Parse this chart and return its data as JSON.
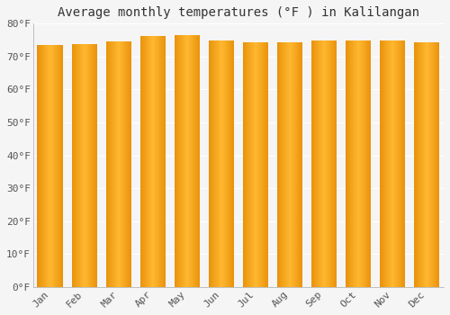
{
  "title": "Average monthly temperatures (°F ) in Kalilangan",
  "months": [
    "Jan",
    "Feb",
    "Mar",
    "Apr",
    "May",
    "Jun",
    "Jul",
    "Aug",
    "Sep",
    "Oct",
    "Nov",
    "Dec"
  ],
  "values": [
    73.4,
    73.9,
    74.5,
    76.3,
    76.6,
    75.0,
    74.3,
    74.3,
    74.8,
    75.0,
    75.0,
    74.3
  ],
  "ylim": [
    0,
    80
  ],
  "yticks": [
    0,
    10,
    20,
    30,
    40,
    50,
    60,
    70,
    80
  ],
  "bar_color_left": "#E8920A",
  "bar_color_center": "#FFBF00",
  "bar_color_right": "#E8920A",
  "background_color": "#f5f5f5",
  "grid_color": "#e0e0e0",
  "title_fontsize": 10,
  "tick_fontsize": 8,
  "font_family": "monospace"
}
